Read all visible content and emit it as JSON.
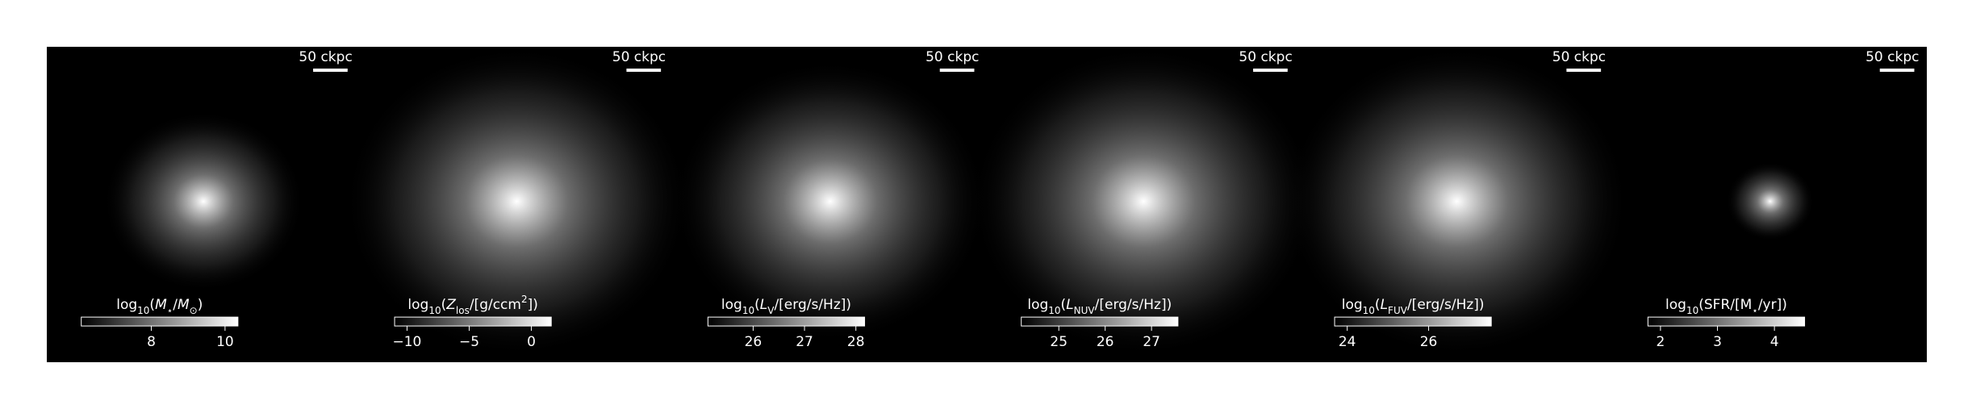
{
  "chart_data": [
    {
      "type": "image",
      "scalebar": "50 ckpc",
      "colorbar_label": [
        {
          "text": "log"
        },
        {
          "text": "10",
          "sub": true
        },
        {
          "text": "("
        },
        {
          "text": "M",
          "italic": true
        },
        {
          "text": "⋆",
          "sub": true
        },
        {
          "text": "/"
        },
        {
          "text": "M",
          "italic": true
        },
        {
          "text": "⊙",
          "sub": true
        },
        {
          "text": ")"
        }
      ],
      "clim": [
        6.1,
        10.35
      ],
      "cticks": [
        8,
        10
      ]
    },
    {
      "type": "image",
      "scalebar": "50 ckpc",
      "colorbar_label": [
        {
          "text": "log"
        },
        {
          "text": "10",
          "sub": true
        },
        {
          "text": "("
        },
        {
          "text": "Z",
          "italic": true
        },
        {
          "text": "los",
          "sub": true
        },
        {
          "text": "/[g/ccm"
        },
        {
          "text": "2",
          "sup": true
        },
        {
          "text": "])"
        }
      ],
      "clim": [
        -11,
        1.6
      ],
      "cticks": [
        {
          "value": -10,
          "label": "−10"
        },
        {
          "value": -5,
          "label": "−5"
        },
        0
      ]
    },
    {
      "type": "image",
      "scalebar": "50 ckpc",
      "colorbar_label": [
        {
          "text": "log"
        },
        {
          "text": "10",
          "sub": true
        },
        {
          "text": "("
        },
        {
          "text": "L",
          "italic": true
        },
        {
          "text": "V",
          "sub": true
        },
        {
          "text": "/[erg/s/Hz])"
        }
      ],
      "clim": [
        25.12,
        28.17
      ],
      "cticks": [
        26,
        27,
        28
      ]
    },
    {
      "type": "image",
      "scalebar": "50 ckpc",
      "colorbar_label": [
        {
          "text": "log"
        },
        {
          "text": "10",
          "sub": true
        },
        {
          "text": "("
        },
        {
          "text": "L",
          "italic": true
        },
        {
          "text": "NUV",
          "sub": true
        },
        {
          "text": "/[erg/s/Hz])"
        }
      ],
      "clim": [
        24.19,
        27.57
      ],
      "cticks": [
        25,
        26,
        27
      ]
    },
    {
      "type": "image",
      "scalebar": "50 ckpc",
      "colorbar_label": [
        {
          "text": "log"
        },
        {
          "text": "10",
          "sub": true
        },
        {
          "text": "("
        },
        {
          "text": "L",
          "italic": true
        },
        {
          "text": "FUV",
          "sub": true
        },
        {
          "text": "/[erg/s/Hz])"
        }
      ],
      "clim": [
        23.69,
        27.54
      ],
      "cticks": [
        24,
        26
      ]
    },
    {
      "type": "image",
      "scalebar": "50 ckpc",
      "colorbar_label": [
        {
          "text": "log"
        },
        {
          "text": "10",
          "sub": true
        },
        {
          "text": "(SFR/[M"
        },
        {
          "text": "⋆",
          "sub": true
        },
        {
          "text": "/yr])"
        }
      ],
      "clim": [
        1.78,
        4.53
      ],
      "cticks": [
        2,
        3,
        4
      ]
    }
  ]
}
